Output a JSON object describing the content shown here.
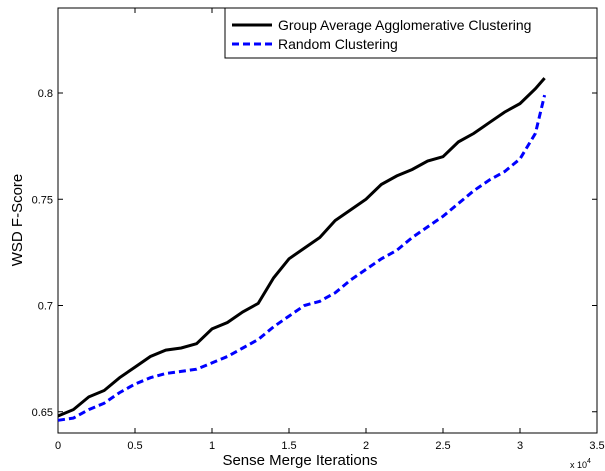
{
  "chart_data": {
    "type": "line",
    "xlabel": "Sense Merge Iterations",
    "ylabel": "WSD F-Score",
    "x_multiplier": {
      "base": "x 10",
      "exponent": "4"
    },
    "x": [
      0,
      0.1,
      0.2,
      0.3,
      0.4,
      0.5,
      0.6,
      0.7,
      0.8,
      0.9,
      1.0,
      1.1,
      1.2,
      1.3,
      1.4,
      1.5,
      1.6,
      1.7,
      1.8,
      1.9,
      2.0,
      2.1,
      2.2,
      2.3,
      2.4,
      2.5,
      2.6,
      2.7,
      2.8,
      2.9,
      3.0,
      3.1,
      3.16
    ],
    "series": [
      {
        "name": "Group Average Agglomerative Clustering",
        "color": "#000000",
        "linestyle": "solid",
        "values": [
          0.648,
          0.651,
          0.657,
          0.66,
          0.666,
          0.671,
          0.676,
          0.679,
          0.68,
          0.682,
          0.689,
          0.692,
          0.697,
          0.701,
          0.713,
          0.722,
          0.727,
          0.732,
          0.74,
          0.745,
          0.75,
          0.757,
          0.761,
          0.764,
          0.768,
          0.77,
          0.777,
          0.781,
          0.786,
          0.791,
          0.795,
          0.802,
          0.807
        ]
      },
      {
        "name": "Random Clustering",
        "color": "#0000ff",
        "linestyle": "dashed",
        "values": [
          0.646,
          0.647,
          0.651,
          0.654,
          0.659,
          0.663,
          0.666,
          0.668,
          0.669,
          0.67,
          0.673,
          0.676,
          0.68,
          0.684,
          0.69,
          0.695,
          0.7,
          0.702,
          0.706,
          0.712,
          0.717,
          0.722,
          0.726,
          0.732,
          0.737,
          0.742,
          0.748,
          0.754,
          0.759,
          0.763,
          0.769,
          0.781,
          0.799
        ]
      }
    ],
    "xlim": [
      0,
      3.5
    ],
    "xticks": [
      0,
      0.5,
      1,
      1.5,
      2,
      2.5,
      3,
      3.5
    ],
    "ylim": [
      0.64,
      0.84
    ],
    "yticks": [
      0.65,
      0.7,
      0.75,
      0.8
    ],
    "grid": false,
    "legend": "upper right"
  }
}
